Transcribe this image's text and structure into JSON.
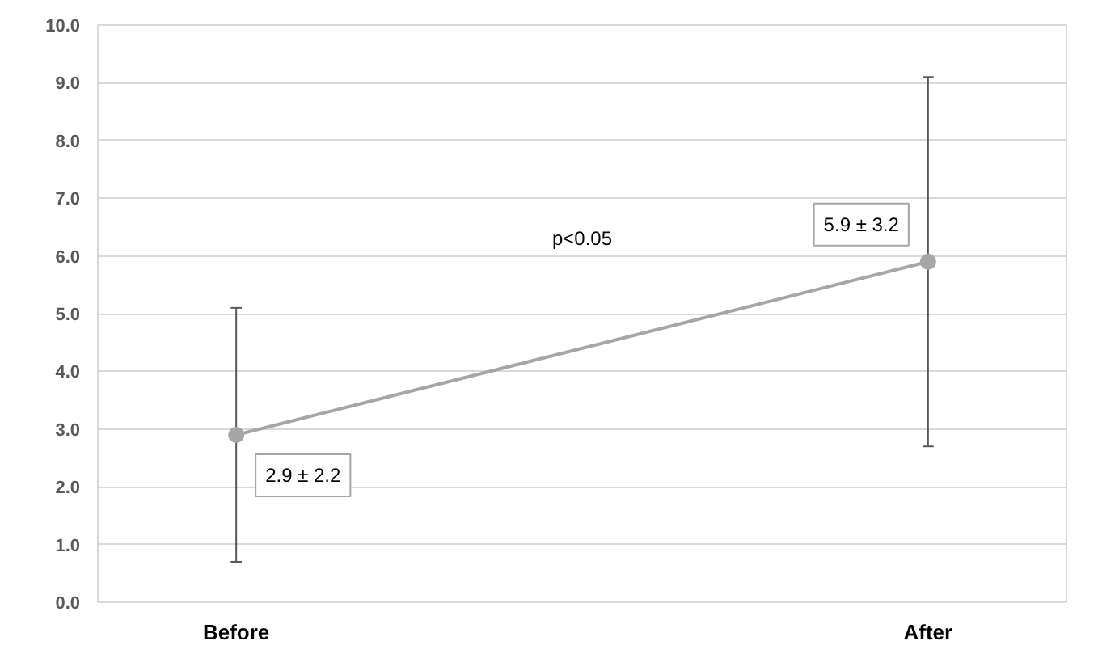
{
  "chart_data": {
    "type": "line",
    "categories": [
      "Before",
      "After"
    ],
    "ylim": [
      0,
      10
    ],
    "yticks": [
      {
        "value": 0,
        "label": "0.0"
      },
      {
        "value": 1,
        "label": "1.0"
      },
      {
        "value": 2,
        "label": "2.0"
      },
      {
        "value": 3,
        "label": "3.0"
      },
      {
        "value": 4,
        "label": "4.0"
      },
      {
        "value": 5,
        "label": "5.0"
      },
      {
        "value": 6,
        "label": "6.0"
      },
      {
        "value": 7,
        "label": "7.0"
      },
      {
        "value": 8,
        "label": "8.0"
      },
      {
        "value": 9,
        "label": "9.0"
      },
      {
        "value": 10,
        "label": "10.0"
      }
    ],
    "series": [
      {
        "color": "#a6a6a6",
        "values": [
          2.9,
          5.9
        ],
        "errors": [
          2.2,
          3.2
        ],
        "value_labels": [
          "2.9 ± 2.2",
          "5.9 ± 3.2"
        ]
      }
    ],
    "annotations": [
      "p<0.05"
    ],
    "marker": "circle",
    "line_style": "solid",
    "grid": "y"
  }
}
